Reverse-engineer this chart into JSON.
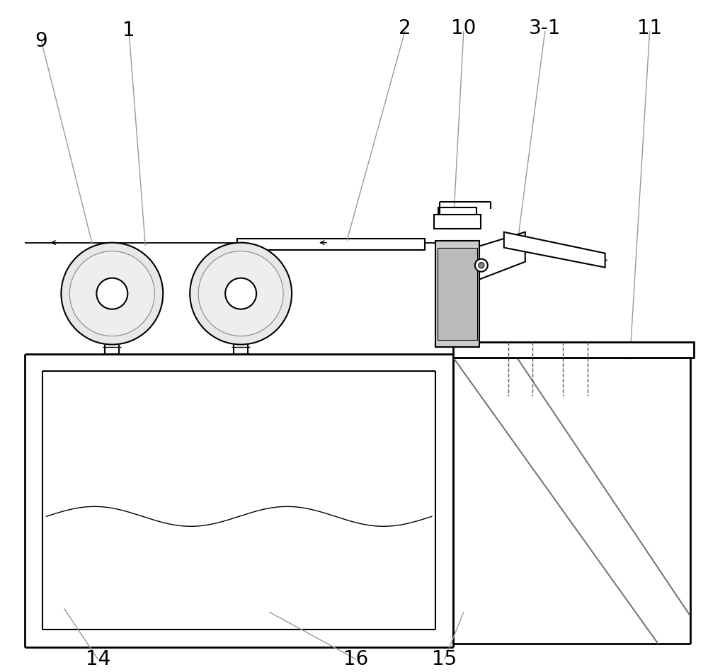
{
  "bg_color": "#ffffff",
  "line_color": "#000000",
  "gray_color": "#999999",
  "label_color": "#000000",
  "figsize": [
    10.0,
    9.49
  ],
  "dpi": 100,
  "labels_top": [
    [
      "9",
      58,
      58
    ],
    [
      "1",
      182,
      43
    ],
    [
      "2",
      572,
      40
    ],
    [
      "10",
      655,
      40
    ],
    [
      "3-1",
      770,
      40
    ],
    [
      "11",
      918,
      40
    ]
  ],
  "labels_bottom": [
    [
      "14",
      138,
      932
    ],
    [
      "16",
      503,
      932
    ],
    [
      "15",
      628,
      932
    ]
  ],
  "pointer_lines": [
    [
      58,
      58,
      130,
      345
    ],
    [
      182,
      47,
      205,
      347
    ],
    [
      572,
      44,
      490,
      340
    ],
    [
      655,
      44,
      640,
      325
    ],
    [
      770,
      44,
      730,
      352
    ],
    [
      918,
      44,
      890,
      508
    ],
    [
      138,
      932,
      90,
      860
    ],
    [
      503,
      932,
      380,
      865
    ],
    [
      628,
      932,
      655,
      865
    ]
  ]
}
